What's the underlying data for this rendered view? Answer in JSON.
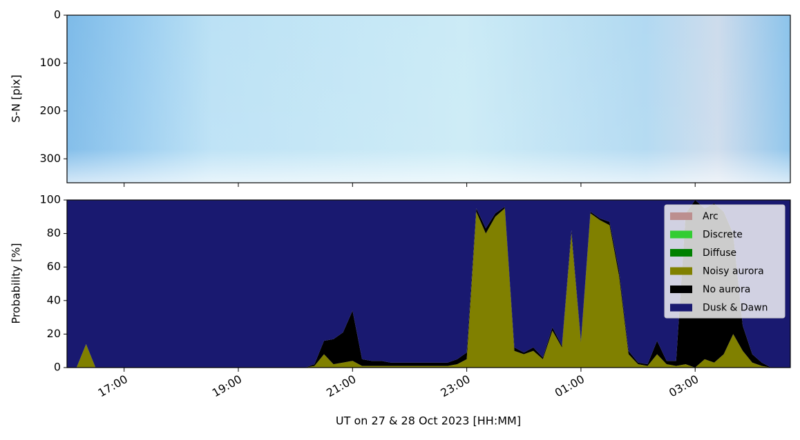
{
  "chart_data": [
    {
      "type": "image",
      "ylabel": "S-N [pix]",
      "ylim": [
        0,
        350
      ],
      "y_inverted": true,
      "yticks": [
        0,
        100,
        200,
        300
      ]
    },
    {
      "type": "stacked_area",
      "ylabel": "Probability [%]",
      "xlabel": "UT on 27 & 28 Oct 2023 [HH:MM]",
      "x": [
        "16:00",
        "16:10",
        "16:20",
        "16:30",
        "16:40",
        "16:50",
        "17:00",
        "17:10",
        "17:20",
        "17:30",
        "17:40",
        "17:50",
        "18:00",
        "18:10",
        "18:20",
        "18:30",
        "18:40",
        "18:50",
        "19:00",
        "19:10",
        "19:20",
        "19:30",
        "19:40",
        "19:50",
        "20:00",
        "20:10",
        "20:20",
        "20:30",
        "20:40",
        "20:50",
        "21:00",
        "21:10",
        "21:20",
        "21:30",
        "21:40",
        "21:50",
        "22:00",
        "22:10",
        "22:20",
        "22:30",
        "22:40",
        "22:50",
        "23:00",
        "23:10",
        "23:20",
        "23:30",
        "23:40",
        "23:50",
        "00:00",
        "00:10",
        "00:20",
        "00:30",
        "00:40",
        "00:50",
        "01:00",
        "01:10",
        "01:20",
        "01:30",
        "01:40",
        "01:50",
        "02:00",
        "02:10",
        "02:20",
        "02:30",
        "02:40",
        "02:50",
        "03:00",
        "03:10",
        "03:20",
        "03:30",
        "03:40",
        "03:50",
        "04:00",
        "04:10",
        "04:20",
        "04:30",
        "04:40"
      ],
      "xticks": [
        "17:00",
        "19:00",
        "21:00",
        "23:00",
        "01:00",
        "03:00"
      ],
      "ylim": [
        0,
        100
      ],
      "yticks": [
        0,
        20,
        40,
        60,
        80,
        100
      ],
      "legend": "upper right",
      "series": [
        {
          "name": "Arc",
          "color": "#bc8f8f",
          "values": [
            0,
            0,
            0,
            0,
            0,
            0,
            0,
            0,
            0,
            0,
            0,
            0,
            0,
            0,
            0,
            0,
            0,
            0,
            0,
            0,
            0,
            0,
            0,
            0,
            0,
            0,
            0,
            0,
            0,
            0,
            0,
            0,
            0,
            0,
            0,
            0,
            0,
            0,
            0,
            0,
            0,
            0,
            0,
            0,
            0,
            0,
            0,
            0,
            0,
            0,
            0,
            0,
            0,
            0,
            0,
            0,
            0,
            0,
            0,
            0,
            0,
            0,
            0,
            0,
            0,
            0,
            0,
            0,
            0,
            0,
            0,
            0,
            0,
            0,
            0,
            0,
            0
          ]
        },
        {
          "name": "Discrete",
          "color": "#32cd32",
          "values": [
            0,
            0,
            0,
            0,
            0,
            0,
            0,
            0,
            0,
            0,
            0,
            0,
            0,
            0,
            0,
            0,
            0,
            0,
            0,
            0,
            0,
            0,
            0,
            0,
            0,
            0,
            0,
            0,
            0,
            0,
            0,
            0,
            0,
            0,
            0,
            0,
            0,
            0,
            0,
            0,
            0,
            0,
            0,
            0,
            0,
            0,
            0,
            0,
            0,
            0,
            0,
            0,
            0,
            0,
            0,
            0,
            0,
            0,
            0,
            0,
            0,
            0,
            0,
            0,
            0,
            0,
            0,
            0,
            0,
            0,
            0,
            0,
            0,
            0,
            0,
            0,
            0
          ]
        },
        {
          "name": "Diffuse",
          "color": "#008000",
          "values": [
            0,
            0,
            0,
            0,
            0,
            0,
            0,
            0,
            0,
            0,
            0,
            0,
            0,
            0,
            0,
            0,
            0,
            0,
            0,
            0,
            0,
            0,
            0,
            0,
            0,
            0,
            0,
            0,
            0,
            0,
            0,
            0,
            0,
            0,
            0,
            0,
            0,
            0,
            0,
            0,
            0,
            0,
            0,
            0,
            0,
            0,
            0,
            0,
            0,
            0,
            0,
            0,
            0,
            0,
            0,
            0,
            0,
            0,
            0,
            0,
            0,
            0,
            0,
            0,
            0,
            0,
            0,
            0,
            0,
            0,
            0,
            0,
            0,
            0,
            0,
            0,
            0
          ]
        },
        {
          "name": "Noisy aurora",
          "color": "#808000",
          "values": [
            0,
            0,
            14,
            0,
            0,
            0,
            0,
            0,
            0,
            0,
            0,
            0,
            0,
            0,
            0,
            0,
            0,
            0,
            0,
            0,
            0,
            0,
            0,
            0,
            0,
            0,
            1,
            8,
            2,
            3,
            4,
            1,
            1,
            1,
            1,
            1,
            1,
            1,
            1,
            1,
            1,
            2,
            5,
            93,
            80,
            90,
            95,
            10,
            8,
            10,
            5,
            22,
            12,
            80,
            15,
            92,
            88,
            85,
            55,
            8,
            2,
            1,
            8,
            2,
            1,
            2,
            0,
            5,
            3,
            8,
            20,
            10,
            3,
            1,
            0,
            0,
            0
          ]
        },
        {
          "name": "No aurora",
          "color": "#000000",
          "values": [
            0,
            0,
            0,
            0,
            0,
            0,
            0,
            0,
            0,
            0,
            0,
            0,
            0,
            0,
            0,
            0,
            0,
            0,
            0,
            0,
            0,
            0,
            0,
            0,
            0,
            0,
            1,
            8,
            15,
            18,
            30,
            4,
            3,
            3,
            2,
            2,
            2,
            2,
            2,
            2,
            2,
            3,
            4,
            2,
            3,
            2,
            1,
            2,
            1,
            2,
            1,
            2,
            1,
            2,
            1,
            1,
            1,
            2,
            3,
            2,
            1,
            1,
            8,
            2,
            3,
            90,
            100,
            90,
            95,
            85,
            60,
            15,
            5,
            2,
            0,
            0,
            0
          ]
        },
        {
          "name": "Dusk & Dawn",
          "color": "#191970",
          "values": [
            100,
            100,
            86,
            100,
            100,
            100,
            100,
            100,
            100,
            100,
            100,
            100,
            100,
            100,
            100,
            100,
            100,
            100,
            100,
            100,
            100,
            100,
            100,
            100,
            100,
            100,
            98,
            84,
            83,
            79,
            66,
            95,
            96,
            96,
            97,
            97,
            97,
            97,
            97,
            97,
            97,
            95,
            91,
            5,
            17,
            8,
            4,
            88,
            91,
            88,
            94,
            76,
            87,
            18,
            84,
            7,
            11,
            13,
            42,
            90,
            97,
            98,
            84,
            96,
            96,
            8,
            0,
            5,
            2,
            7,
            20,
            75,
            92,
            97,
            100,
            100,
            100
          ]
        }
      ]
    }
  ]
}
